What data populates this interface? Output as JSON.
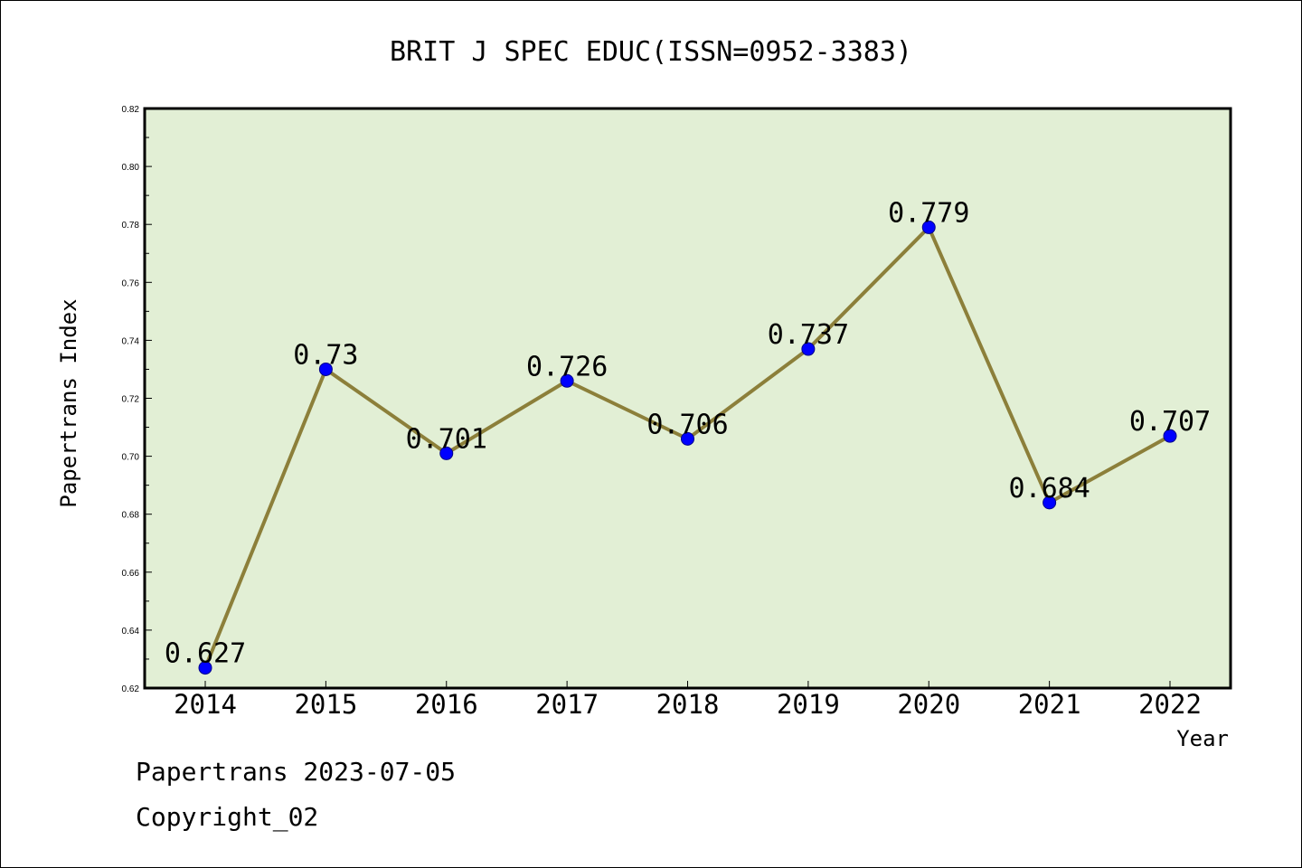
{
  "chart_data": {
    "type": "line",
    "title": "BRIT J SPEC EDUC(ISSN=0952-3383)",
    "xlabel": "Year",
    "ylabel": "Papertrans Index",
    "categories": [
      "2014",
      "2015",
      "2016",
      "2017",
      "2018",
      "2019",
      "2020",
      "2021",
      "2022"
    ],
    "series": [
      {
        "values": [
          0.627,
          0.73,
          0.701,
          0.726,
          0.706,
          0.737,
          0.779,
          0.684,
          0.707
        ],
        "labels": [
          "0.627",
          "0.73",
          "0.701",
          "0.726",
          "0.706",
          "0.737",
          "0.779",
          "0.684",
          "0.707"
        ]
      }
    ],
    "ylim": [
      0.62,
      0.82
    ],
    "yticks": [
      "0.62",
      "0.64",
      "0.66",
      "0.68",
      "0.70",
      "0.72",
      "0.74",
      "0.76",
      "0.78",
      "0.80",
      "0.82"
    ],
    "grid": false,
    "colors": {
      "plot_background": "#e2efd5",
      "line": "#8c7f3a",
      "marker": "#0000ff"
    }
  },
  "footer": {
    "line1": "Papertrans 2023-07-05",
    "line2": "Copyright_02"
  }
}
